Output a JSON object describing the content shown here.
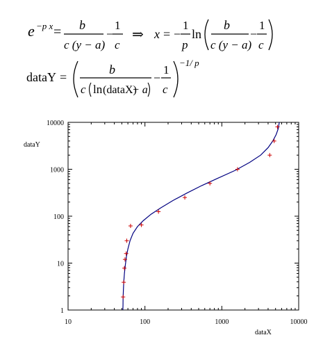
{
  "equations": {
    "eq1_exp_base": "e",
    "eq1_exp_power": "−p x",
    "eq1_equals": "=",
    "eq1_numer": "b",
    "eq1_denom": "c (y − a)",
    "eq1_minus": "−",
    "eq1_frac2_numer": "1",
    "eq1_frac2_denom": "c",
    "implies": "⇒",
    "eq1b_lhs": "x",
    "eq1b_equals": "=",
    "eq1b_minus": "−",
    "eq1b_frac_numer": "1",
    "eq1b_frac_denom": "p",
    "eq1b_ln": "ln",
    "eq1b_inner_numer": "b",
    "eq1b_inner_denom": "c (y − a)",
    "eq1b_inner_minus": "−",
    "eq1b_inner_frac_numer": "1",
    "eq1b_inner_frac_denom": "c",
    "eq2_lhs": "dataY",
    "eq2_equals": "=",
    "eq2_numer": "b",
    "eq2_denom_c": "c",
    "eq2_denom_ln": "ln",
    "eq2_denom_arg": "(dataX)",
    "eq2_denom_minus_a": "− a",
    "eq2_minus": "−",
    "eq2_frac2_numer": "1",
    "eq2_frac2_denom": "c",
    "eq2_power": "−1/ p"
  },
  "chart_data": {
    "type": "scatter",
    "xlabel": "dataX",
    "ylabel": "dataY",
    "x_scale": "log",
    "y_scale": "log",
    "xlim": [
      10,
      10000
    ],
    "ylim": [
      1,
      10000
    ],
    "x_ticks": [
      "10",
      "100",
      "1000",
      "10000"
    ],
    "y_ticks": [
      "1",
      "10",
      "100",
      "1000",
      "10000"
    ],
    "grid": false,
    "series": [
      {
        "kind": "points",
        "marker": "+",
        "color": "#cc0000",
        "x": [
          52,
          53,
          54,
          55,
          57,
          58,
          65,
          90,
          150,
          330,
          700,
          1600,
          4200,
          4800,
          5300
        ],
        "y": [
          1.9,
          3.9,
          7.8,
          12,
          16,
          30,
          62,
          65,
          125,
          250,
          500,
          1000,
          2000,
          4000,
          8000
        ]
      },
      {
        "kind": "line",
        "color": "#000080",
        "x": [
          51.6,
          51.8,
          52,
          52.5,
          53,
          54,
          55.5,
          57.5,
          60,
          64,
          70,
          80,
          95,
          120,
          160,
          230,
          350,
          550,
          900,
          1500,
          2300,
          3200,
          4000,
          4600,
          5100,
          5400,
          5600
        ],
        "y": [
          1,
          1.3,
          1.8,
          2.8,
          4,
          6,
          9,
          14,
          20,
          30,
          43,
          60,
          80,
          110,
          150,
          215,
          310,
          450,
          650,
          950,
          1400,
          2000,
          2900,
          4000,
          5500,
          7200,
          10000
        ]
      }
    ]
  }
}
